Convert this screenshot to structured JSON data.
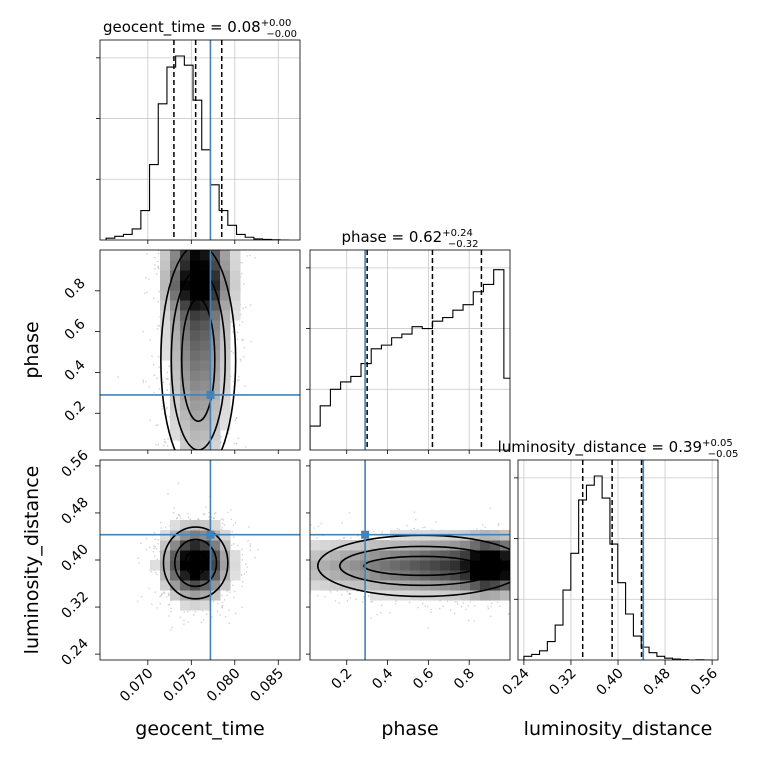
{
  "chart_data": {
    "type": "corner",
    "parameters": [
      "geocent_time",
      "phase",
      "luminosity_distance"
    ],
    "titles": [
      {
        "main": "geocent_time = 0.08",
        "sup": "+0.00",
        "sub": "−0.00"
      },
      {
        "main": "phase = 0.62",
        "sup": "+0.24",
        "sub": "−0.32"
      },
      {
        "main": "luminosity_distance = 0.39",
        "sup": "+0.05",
        "sub": "−0.05"
      }
    ],
    "axis_labels": {
      "x": [
        "geocent_time",
        "phase",
        "luminosity_distance"
      ],
      "y": [
        "phase",
        "luminosity_distance"
      ]
    },
    "ranges": [
      [
        0.0645,
        0.0875
      ],
      [
        0.02,
        1.0
      ],
      [
        0.23,
        0.57
      ]
    ],
    "ticks": {
      "geocent_time": [
        0.07,
        0.075,
        0.08,
        0.085
      ],
      "geocent_time_labels": [
        "0.070",
        "0.075",
        "0.080",
        "0.085"
      ],
      "phase_x": [
        0.2,
        0.4,
        0.6,
        0.8
      ],
      "phase_x_labels": [
        "0.2",
        "0.4",
        "0.6",
        "0.8"
      ],
      "phase_y": [
        0.2,
        0.4,
        0.6,
        0.8
      ],
      "phase_y_labels": [
        "0.2",
        "0.4",
        "0.6",
        "0.8"
      ],
      "luminosity_distance": [
        0.24,
        0.32,
        0.4,
        0.48,
        0.56
      ],
      "luminosity_distance_labels": [
        "0.24",
        "0.32",
        "0.40",
        "0.48",
        "0.56"
      ]
    },
    "truth": {
      "geocent_time": 0.0772,
      "phase": 0.29,
      "luminosity_distance": 0.443
    },
    "quantiles": {
      "geocent_time": [
        0.073,
        0.0755,
        0.0785
      ],
      "phase": [
        0.3,
        0.62,
        0.86
      ],
      "luminosity_distance": [
        0.34,
        0.39,
        0.44
      ]
    },
    "histograms": {
      "geocent_time": {
        "start": 0.0652,
        "step": 0.001,
        "counts": [
          0.01,
          0.02,
          0.03,
          0.06,
          0.16,
          0.41,
          0.74,
          0.94,
          1.0,
          0.95,
          0.76,
          0.49,
          0.3,
          0.16,
          0.08,
          0.03,
          0.015,
          0.006,
          0.003,
          0.001,
          0.0
        ]
      },
      "phase": {
        "start": 0.02,
        "step": 0.05,
        "counts": [
          0.13,
          0.24,
          0.33,
          0.37,
          0.4,
          0.47,
          0.55,
          0.57,
          0.61,
          0.63,
          0.67,
          0.66,
          0.7,
          0.72,
          0.76,
          0.79,
          0.86,
          0.9,
          0.98,
          0.39
        ]
      },
      "luminosity_distance": {
        "start": 0.24,
        "step": 0.0133,
        "counts": [
          0.02,
          0.03,
          0.05,
          0.1,
          0.19,
          0.38,
          0.58,
          0.87,
          0.95,
          1.0,
          0.88,
          0.63,
          0.42,
          0.25,
          0.13,
          0.07,
          0.04,
          0.02,
          0.01,
          0.005,
          0.002,
          0.0,
          0.001,
          0.0
        ]
      }
    },
    "density_2d": {
      "geocent_time__phase": {
        "center": [
          0.0758,
          0.7
        ],
        "spread": [
          0.0022,
          0.28
        ],
        "peak": [
          0.0758,
          0.82
        ],
        "contours": [
          [
            0.0019,
            0.14,
            0.0
          ],
          [
            0.0031,
            0.3,
            0.0
          ],
          [
            0.0043,
            0.44,
            0.0
          ]
        ]
      },
      "geocent_time__luminosity_distance": {
        "center": [
          0.0755,
          0.395
        ],
        "spread": [
          0.0022,
          0.036
        ],
        "contours": [
          [
            0.0012,
            0.02
          ],
          [
            0.0024,
            0.04
          ],
          [
            0.0037,
            0.061
          ]
        ]
      },
      "phase__luminosity_distance": {
        "center": [
          0.65,
          0.39
        ],
        "spread": [
          0.3,
          0.03
        ],
        "peak": [
          0.88,
          0.39
        ],
        "contours": [
          [
            0.2,
            0.016
          ],
          [
            0.42,
            0.033
          ],
          [
            0.62,
            0.052
          ]
        ]
      }
    }
  }
}
